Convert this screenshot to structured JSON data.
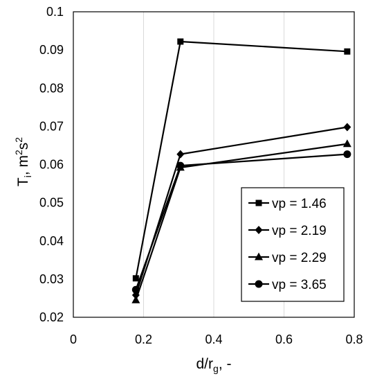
{
  "chart_data": {
    "type": "line",
    "xlabel": "d/r",
    "xlabel_subscript": "g",
    "xlabel_suffix": ", -",
    "ylabel": "T",
    "ylabel_subscript": "i",
    "ylabel_units_prefix": ", m",
    "ylabel_units_sup1": "2",
    "ylabel_units_mid": "s",
    "ylabel_units_sup2": "2",
    "xlim": [
      0,
      0.8
    ],
    "ylim": [
      0.02,
      0.1
    ],
    "xticks": [
      0,
      0.2,
      0.4,
      0.6,
      0.8
    ],
    "xtick_labels": [
      "0",
      "0.2",
      "0.4",
      "0.6",
      "0.8"
    ],
    "yticks": [
      0.02,
      0.03,
      0.04,
      0.05,
      0.06,
      0.07,
      0.08,
      0.09,
      0.1
    ],
    "ytick_labels": [
      "0.02",
      "0.03",
      "0.04",
      "0.05",
      "0.06",
      "0.07",
      "0.08",
      "0.09",
      "0.1"
    ],
    "grid": "vertical",
    "legend_position": "bottom-right",
    "series": [
      {
        "name": "vp = 1.46",
        "marker": "square",
        "x": [
          0.178,
          0.305,
          0.78
        ],
        "y": [
          0.0302,
          0.0922,
          0.0896
        ]
      },
      {
        "name": "vp = 2.19",
        "marker": "diamond",
        "x": [
          0.178,
          0.305,
          0.78
        ],
        "y": [
          0.0258,
          0.0627,
          0.0698
        ]
      },
      {
        "name": "vp = 2.29",
        "marker": "triangle",
        "x": [
          0.178,
          0.305,
          0.78
        ],
        "y": [
          0.0245,
          0.0592,
          0.0654
        ]
      },
      {
        "name": "vp = 3.65",
        "marker": "circle",
        "x": [
          0.178,
          0.305,
          0.78
        ],
        "y": [
          0.0272,
          0.0597,
          0.0627
        ]
      }
    ]
  }
}
